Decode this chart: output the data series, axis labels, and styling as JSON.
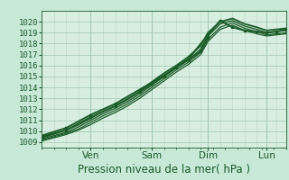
{
  "xlabel": "Pression niveau de la mer( hPa )",
  "ylim": [
    1008.5,
    1021.0
  ],
  "xlim": [
    0,
    100
  ],
  "yticks": [
    1009,
    1010,
    1011,
    1012,
    1013,
    1014,
    1015,
    1016,
    1017,
    1018,
    1019,
    1020
  ],
  "xtick_positions": [
    20,
    45,
    68,
    92
  ],
  "xtick_labels": [
    "Ven",
    "Sam",
    "Dim",
    "Lun"
  ],
  "bg_color": "#c8e8d8",
  "plot_bg_color": "#d8eee0",
  "grid_color": "#a0c8b0",
  "minor_grid_color": "#b8d8c4",
  "line_color": "#1a5c28",
  "lines": [
    {
      "x": [
        0,
        5,
        10,
        15,
        20,
        25,
        30,
        35,
        40,
        45,
        50,
        55,
        60,
        65,
        68,
        73,
        78,
        83,
        88,
        92,
        96,
        100
      ],
      "y": [
        1009.5,
        1009.8,
        1010.1,
        1010.6,
        1011.2,
        1011.8,
        1012.3,
        1012.9,
        1013.6,
        1014.5,
        1015.3,
        1016.0,
        1016.8,
        1017.8,
        1019.0,
        1020.0,
        1020.3,
        1019.8,
        1019.5,
        1019.2,
        1019.3,
        1019.4
      ],
      "lw": 1.3,
      "marker": null
    },
    {
      "x": [
        0,
        5,
        10,
        15,
        20,
        25,
        30,
        35,
        40,
        45,
        50,
        55,
        60,
        65,
        68,
        73,
        78,
        83,
        88,
        92,
        96,
        100
      ],
      "y": [
        1009.3,
        1009.6,
        1009.9,
        1010.4,
        1011.0,
        1011.6,
        1012.1,
        1012.7,
        1013.4,
        1014.2,
        1015.0,
        1015.8,
        1016.5,
        1017.5,
        1018.7,
        1019.8,
        1020.1,
        1019.6,
        1019.3,
        1019.0,
        1019.1,
        1019.2
      ],
      "lw": 1.0,
      "marker": null
    },
    {
      "x": [
        0,
        5,
        10,
        15,
        20,
        25,
        30,
        35,
        40,
        45,
        50,
        55,
        60,
        65,
        68,
        73,
        78,
        83,
        88,
        92,
        96,
        100
      ],
      "y": [
        1009.2,
        1009.5,
        1009.8,
        1010.2,
        1010.8,
        1011.4,
        1011.9,
        1012.5,
        1013.2,
        1014.0,
        1014.8,
        1015.6,
        1016.3,
        1017.2,
        1018.4,
        1019.5,
        1019.9,
        1019.4,
        1019.1,
        1018.8,
        1018.9,
        1019.0
      ],
      "lw": 0.9,
      "marker": null
    },
    {
      "x": [
        0,
        5,
        10,
        15,
        20,
        25,
        30,
        35,
        40,
        45,
        50,
        55,
        60,
        65,
        68,
        73,
        78,
        83,
        88,
        92,
        96,
        100
      ],
      "y": [
        1009.1,
        1009.4,
        1009.7,
        1010.1,
        1010.6,
        1011.2,
        1011.7,
        1012.3,
        1013.0,
        1013.8,
        1014.6,
        1015.4,
        1016.1,
        1017.0,
        1018.2,
        1019.3,
        1019.7,
        1019.2,
        1018.9,
        1018.7,
        1018.8,
        1018.9
      ],
      "lw": 0.9,
      "marker": null
    },
    {
      "x": [
        0,
        10,
        20,
        30,
        40,
        50,
        60,
        68,
        73,
        78,
        83,
        88,
        92,
        96,
        100
      ],
      "y": [
        1009.6,
        1010.3,
        1011.5,
        1012.5,
        1013.8,
        1015.1,
        1016.6,
        1018.8,
        1020.1,
        1019.5,
        1019.2,
        1019.1,
        1019.0,
        1019.1,
        1019.3
      ],
      "lw": 1.4,
      "marker": "s"
    },
    {
      "x": [
        0,
        10,
        20,
        30,
        40,
        45,
        50,
        55,
        60,
        65,
        68
      ],
      "y": [
        1009.4,
        1010.1,
        1011.3,
        1012.3,
        1013.6,
        1014.3,
        1015.0,
        1015.8,
        1016.5,
        1017.3,
        1018.5
      ],
      "lw": 1.2,
      "marker": "s"
    }
  ],
  "major_vlines": [
    20,
    45,
    68,
    92
  ],
  "minor_vlines": [
    5,
    10,
    15,
    25,
    30,
    35,
    40,
    50,
    55,
    60,
    65,
    73,
    78,
    83,
    88,
    96
  ],
  "text_color": "#1a5c28",
  "fontsize_xlabel": 8.5,
  "fontsize_yticks": 6.5,
  "fontsize_xticks": 7.5
}
